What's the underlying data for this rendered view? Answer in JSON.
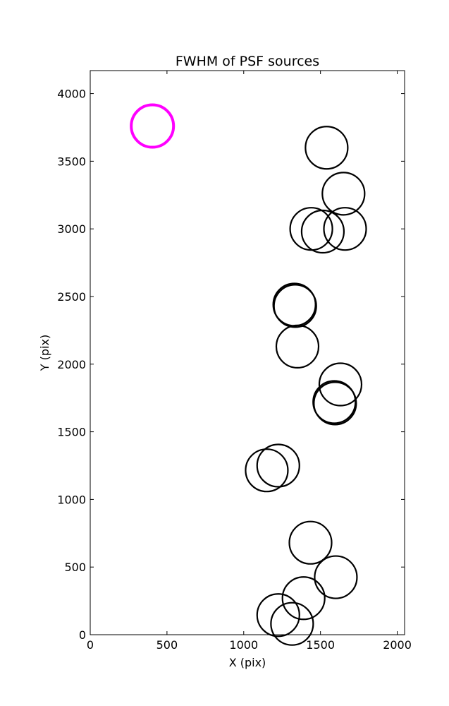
{
  "chart_data": {
    "type": "scatter",
    "title": "FWHM of PSF sources",
    "xlabel": "X (pix)",
    "ylabel": "Y (pix)",
    "xlim": [
      0,
      2048
    ],
    "ylim": [
      0,
      4170
    ],
    "x_ticks": [
      0,
      500,
      1000,
      1500,
      2000
    ],
    "y_ticks": [
      0,
      500,
      1000,
      1500,
      2000,
      2500,
      3000,
      3500,
      4000
    ],
    "grid": false,
    "legend": false,
    "marker": "circle (radius scaled by FWHM)",
    "series": [
      {
        "color": "#000000",
        "points": [
          {
            "x": 1540,
            "y": 3600
          },
          {
            "x": 1650,
            "y": 3260
          },
          {
            "x": 1440,
            "y": 3000
          },
          {
            "x": 1515,
            "y": 2980
          },
          {
            "x": 1660,
            "y": 3000
          },
          {
            "x": 1330,
            "y": 2440
          },
          {
            "x": 1335,
            "y": 2430
          },
          {
            "x": 1350,
            "y": 2130
          },
          {
            "x": 1630,
            "y": 1850
          },
          {
            "x": 1590,
            "y": 1720
          },
          {
            "x": 1595,
            "y": 1710
          },
          {
            "x": 1150,
            "y": 1215
          },
          {
            "x": 1225,
            "y": 1250
          },
          {
            "x": 1435,
            "y": 680
          },
          {
            "x": 1600,
            "y": 425
          },
          {
            "x": 1390,
            "y": 270
          },
          {
            "x": 1225,
            "y": 145
          },
          {
            "x": 1315,
            "y": 80
          }
        ]
      },
      {
        "color": "#ff00ff",
        "points": [
          {
            "x": 405,
            "y": 3760
          }
        ]
      }
    ]
  }
}
